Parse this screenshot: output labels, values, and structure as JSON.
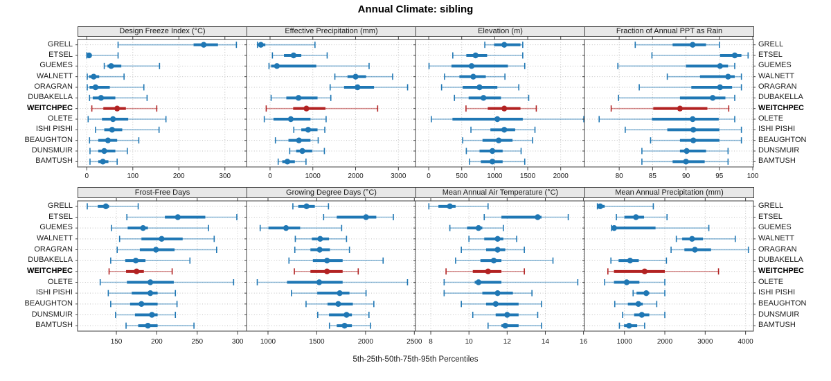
{
  "title": "Annual Climate: sibling",
  "caption": "5th-25th-50th-75th-95th Percentiles",
  "highlight_site": "WEITCHPEC",
  "colors": {
    "series": "#1f77b4",
    "highlight": "#b22222",
    "header_bg": "#e8e8e8",
    "grid": "#c2c2c2",
    "border": "#3f3f3f",
    "text": "#1a1a1a"
  },
  "chart_data": {
    "type": "dot-whisker-trellis",
    "grid": [
      2,
      4
    ],
    "percentiles": [
      5,
      25,
      50,
      75,
      95
    ],
    "legend": "none",
    "sites": [
      "GRELL",
      "ETSEL",
      "GUEMES",
      "WALNETT",
      "ORAGRAN",
      "DUBAKELLA",
      "WEITCHPEC",
      "OLETE",
      "ISHI PISHI",
      "BEAUGHTON",
      "DUNSMUIR",
      "BAMTUSH"
    ],
    "panels": [
      {
        "title": "Design Freeze Index (°C)",
        "xlim": [
          -20,
          347
        ],
        "ticks": [
          0,
          100,
          200,
          300
        ],
        "values": [
          [
            68,
            232,
            254,
            285,
            325
          ],
          [
            0,
            1,
            5,
            9,
            68
          ],
          [
            38,
            45,
            53,
            75,
            158
          ],
          [
            1,
            5,
            15,
            27,
            81
          ],
          [
            1,
            6,
            19,
            50,
            124
          ],
          [
            6,
            13,
            31,
            62,
            131
          ],
          [
            11,
            36,
            66,
            85,
            152
          ],
          [
            3,
            33,
            57,
            90,
            172
          ],
          [
            19,
            38,
            55,
            77,
            157
          ],
          [
            6,
            25,
            46,
            66,
            113
          ],
          [
            7,
            25,
            38,
            62,
            88
          ],
          [
            7,
            25,
            35,
            47,
            66
          ]
        ]
      },
      {
        "title": "Effective Precipitation (mm)",
        "xlim": [
          -550,
          3400
        ],
        "ticks": [
          0,
          1000,
          2000,
          3000
        ],
        "values": [
          [
            -295,
            -265,
            -215,
            -110,
            1050
          ],
          [
            55,
            325,
            550,
            730,
            1335
          ],
          [
            -25,
            25,
            160,
            1080,
            2315
          ],
          [
            1515,
            1810,
            2000,
            2245,
            2865
          ],
          [
            1405,
            1730,
            2045,
            2430,
            3215
          ],
          [
            25,
            380,
            665,
            1110,
            1420
          ],
          [
            -90,
            540,
            850,
            1295,
            2515
          ],
          [
            -135,
            80,
            485,
            945,
            1310
          ],
          [
            555,
            730,
            890,
            1110,
            1280
          ],
          [
            125,
            430,
            675,
            945,
            1125
          ],
          [
            460,
            610,
            755,
            985,
            1270
          ],
          [
            190,
            285,
            405,
            580,
            840
          ]
        ]
      },
      {
        "title": "Elevation (m)",
        "xlim": [
          -200,
          2360
        ],
        "ticks": [
          0,
          500,
          1000,
          1500,
          2000
        ],
        "values": [
          [
            850,
            990,
            1145,
            1390,
            1425
          ],
          [
            365,
            570,
            710,
            885,
            1425
          ],
          [
            5,
            345,
            650,
            1200,
            1455
          ],
          [
            240,
            465,
            675,
            865,
            1155
          ],
          [
            195,
            515,
            770,
            1040,
            1365
          ],
          [
            390,
            605,
            830,
            1095,
            1515
          ],
          [
            565,
            895,
            1145,
            1390,
            1630
          ],
          [
            40,
            360,
            1040,
            1425,
            2350
          ],
          [
            640,
            935,
            1145,
            1310,
            1610
          ],
          [
            515,
            815,
            1060,
            1270,
            1575
          ],
          [
            570,
            770,
            965,
            1120,
            1400
          ],
          [
            620,
            790,
            965,
            1120,
            1455
          ]
        ]
      },
      {
        "title": "Fraction of Annual PPT as Rain",
        "xlim": [
          74.8,
          100.1
        ],
        "ticks": [
          80,
          85,
          90,
          95,
          100
        ],
        "values": [
          [
            82.4,
            88,
            91,
            93,
            95
          ],
          [
            84.9,
            95.1,
            97.3,
            98.3,
            99.3
          ],
          [
            79.8,
            90,
            95.1,
            96.3,
            97.3
          ],
          [
            87.2,
            92.1,
            96.3,
            97.3,
            98.3
          ],
          [
            83,
            90.8,
            95.1,
            96.9,
            98.3
          ],
          [
            79.9,
            89.1,
            94,
            95.9,
            97.3
          ],
          [
            78.8,
            85.1,
            89.1,
            93.2,
            96.4
          ],
          [
            77,
            84.9,
            91,
            94.9,
            97.3
          ],
          [
            80.9,
            87.2,
            91.1,
            95,
            98.3
          ],
          [
            84.7,
            89.1,
            91.1,
            95,
            98.3
          ],
          [
            83.4,
            89.1,
            90.1,
            93,
            96.3
          ],
          [
            83.4,
            88,
            90,
            92.8,
            96.3
          ]
        ]
      },
      {
        "title": "Frost-Free Days",
        "xlim": [
          102,
          311
        ],
        "ticks": [
          150,
          200,
          250,
          300
        ],
        "values": [
          [
            114,
            127,
            137,
            141,
            177
          ],
          [
            163,
            210,
            226,
            260,
            299
          ],
          [
            144,
            164,
            183,
            189,
            264
          ],
          [
            154,
            181,
            206,
            232,
            271
          ],
          [
            151,
            179,
            199,
            222,
            274
          ],
          [
            143,
            161,
            174,
            186,
            241
          ],
          [
            141,
            162,
            175,
            184,
            219
          ],
          [
            130,
            163,
            192,
            221,
            295
          ],
          [
            140,
            169,
            192,
            201,
            223
          ],
          [
            143,
            167,
            181,
            201,
            225
          ],
          [
            149,
            173,
            194,
            201,
            223
          ],
          [
            162,
            177,
            189,
            201,
            246
          ]
        ]
      },
      {
        "title": "Growing Degree Days (°C)",
        "xlim": [
          780,
          2512
        ],
        "ticks": [
          1000,
          1500,
          2000,
          2500
        ],
        "values": [
          [
            1255,
            1310,
            1395,
            1480,
            1620
          ],
          [
            1570,
            1705,
            2005,
            2110,
            2285
          ],
          [
            920,
            1005,
            1185,
            1330,
            1755
          ],
          [
            1280,
            1450,
            1535,
            1625,
            1805
          ],
          [
            1275,
            1435,
            1530,
            1635,
            1835
          ],
          [
            1215,
            1460,
            1605,
            1765,
            2180
          ],
          [
            1270,
            1435,
            1605,
            1765,
            1925
          ],
          [
            890,
            1195,
            1525,
            1765,
            2430
          ],
          [
            1240,
            1505,
            1735,
            1835,
            2005
          ],
          [
            1390,
            1610,
            1720,
            1870,
            2085
          ],
          [
            1510,
            1625,
            1805,
            1860,
            2035
          ],
          [
            1630,
            1705,
            1785,
            1860,
            2050
          ]
        ]
      },
      {
        "title": "Mean Annual Air Temperature (°C)",
        "xlim": [
          7.2,
          16.05
        ],
        "ticks": [
          8,
          10,
          12,
          14,
          16
        ],
        "values": [
          [
            7.9,
            8.4,
            9.0,
            9.3,
            11.0
          ],
          [
            10.8,
            11.7,
            13.6,
            13.8,
            15.2
          ],
          [
            9.0,
            9.9,
            10.5,
            10.7,
            11.8
          ],
          [
            10.0,
            10.8,
            11.5,
            11.8,
            12.5
          ],
          [
            9.6,
            10.9,
            11.5,
            11.9,
            12.9
          ],
          [
            9.3,
            10.6,
            11.3,
            11.7,
            14.4
          ],
          [
            8.8,
            10.2,
            11.0,
            11.7,
            12.9
          ],
          [
            8.7,
            10.3,
            10.5,
            11.7,
            15.7
          ],
          [
            8.7,
            10.7,
            11.5,
            12.3,
            13.3
          ],
          [
            9.6,
            10.9,
            11.4,
            12.6,
            13.8
          ],
          [
            10.2,
            11.4,
            12.0,
            12.6,
            13.6
          ],
          [
            11.0,
            11.7,
            11.9,
            12.6,
            13.8
          ]
        ]
      },
      {
        "title": "Mean Annual Precipitation (mm)",
        "xlim": [
          10,
          4195
        ],
        "ticks": [
          1000,
          2000,
          3000,
          4000
        ],
        "values": [
          [
            330,
            360,
            400,
            510,
            1715
          ],
          [
            800,
            1000,
            1285,
            1485,
            2055
          ],
          [
            680,
            715,
            745,
            1770,
            3090
          ],
          [
            2285,
            2430,
            2675,
            2945,
            3745
          ],
          [
            2155,
            2485,
            2745,
            3145,
            4070
          ],
          [
            665,
            855,
            1140,
            1355,
            2040
          ],
          [
            590,
            740,
            1500,
            2000,
            3330
          ],
          [
            510,
            740,
            1055,
            1370,
            2000
          ],
          [
            1215,
            1300,
            1540,
            1615,
            2000
          ],
          [
            760,
            1085,
            1345,
            1455,
            1800
          ],
          [
            955,
            1240,
            1430,
            1615,
            2000
          ],
          [
            875,
            990,
            1115,
            1315,
            1500
          ]
        ]
      }
    ]
  }
}
